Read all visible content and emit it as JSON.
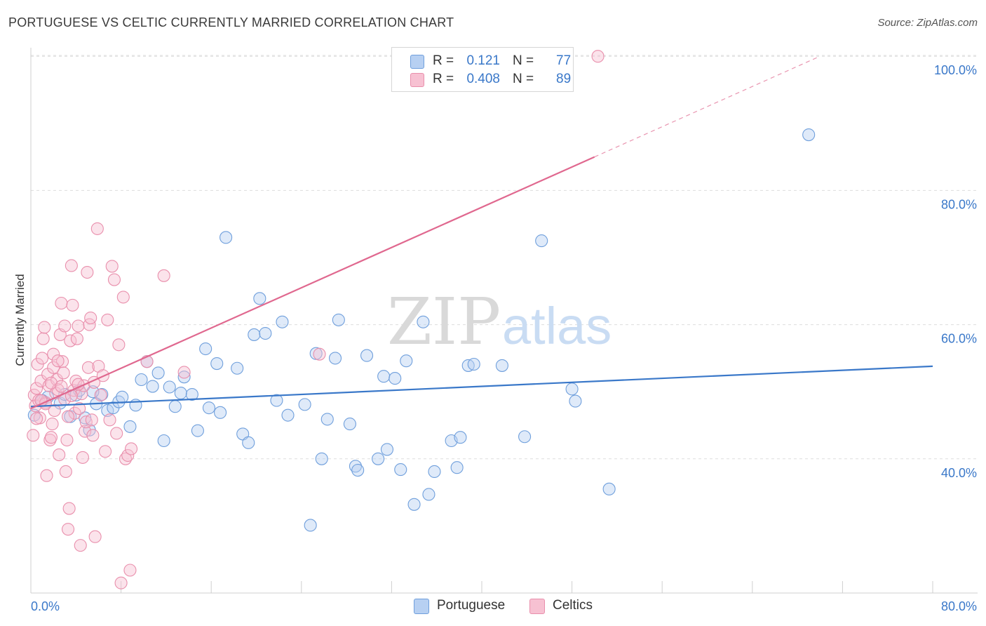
{
  "title": "PORTUGUESE VS CELTIC CURRENTLY MARRIED CORRELATION CHART",
  "source": "Source: ZipAtlas.com",
  "watermark": {
    "zip": "ZIP",
    "atlas": "atlas"
  },
  "legend": {
    "rows": [
      {
        "name": "Portuguese",
        "r_label": "R =",
        "r_value": "0.121",
        "n_label": "N =",
        "n_value": "77",
        "color": "#a9c8f0"
      },
      {
        "name": "Celtics",
        "r_label": "R =",
        "r_value": "0.408",
        "n_label": "N =",
        "n_value": "89",
        "color": "#f6b8cb"
      }
    ]
  },
  "colors": {
    "blue": "#3a78c9",
    "blue_fill": "#b7d0f2",
    "pink": "#e0688f",
    "pink_fill": "#f7c1d2",
    "grid": "#dddddd",
    "axis_text": "#3a78c9"
  },
  "chart_data": {
    "type": "scatter",
    "title": "PORTUGUESE VS CELTIC CURRENTLY MARRIED CORRELATION CHART",
    "xlabel": "",
    "ylabel": "Currently Married",
    "xlim": [
      0,
      80
    ],
    "ylim": [
      20,
      102
    ],
    "x_tick_labels": [
      "0.0%",
      "80.0%"
    ],
    "y_ticks": [
      40,
      60,
      80,
      100
    ],
    "y_tick_labels": [
      "40.0%",
      "60.0%",
      "80.0%",
      "100.0%"
    ],
    "series": [
      {
        "name": "Portuguese",
        "color": "#3a78c9",
        "trend": {
          "x": [
            0,
            80
          ],
          "y": [
            47.8,
            53.8
          ],
          "dashed_to": null
        },
        "points": [
          [
            0.3,
            46.5
          ],
          [
            1.5,
            49.2
          ],
          [
            2.6,
            48.3
          ],
          [
            3.5,
            46.3
          ],
          [
            4.0,
            49.5
          ],
          [
            4.3,
            50.2
          ],
          [
            4.8,
            46.1
          ],
          [
            5.2,
            44.3
          ],
          [
            5.8,
            48.2
          ],
          [
            6.3,
            49.6
          ],
          [
            6.8,
            47.2
          ],
          [
            7.3,
            47.6
          ],
          [
            7.8,
            48.5
          ],
          [
            8.1,
            49.2
          ],
          [
            8.8,
            44.8
          ],
          [
            9.3,
            48.0
          ],
          [
            9.8,
            51.8
          ],
          [
            10.3,
            54.5
          ],
          [
            10.8,
            50.8
          ],
          [
            11.3,
            52.8
          ],
          [
            11.8,
            42.7
          ],
          [
            12.3,
            50.7
          ],
          [
            12.8,
            47.8
          ],
          [
            13.3,
            49.8
          ],
          [
            13.6,
            52.2
          ],
          [
            14.3,
            49.6
          ],
          [
            14.8,
            44.2
          ],
          [
            15.5,
            56.4
          ],
          [
            15.8,
            47.6
          ],
          [
            16.5,
            54.2
          ],
          [
            16.8,
            46.9
          ],
          [
            17.3,
            73.0
          ],
          [
            18.3,
            53.5
          ],
          [
            18.8,
            43.7
          ],
          [
            19.3,
            42.4
          ],
          [
            19.8,
            58.5
          ],
          [
            20.3,
            63.9
          ],
          [
            20.8,
            58.7
          ],
          [
            21.8,
            48.7
          ],
          [
            22.3,
            60.4
          ],
          [
            22.8,
            46.5
          ],
          [
            24.3,
            48.1
          ],
          [
            24.8,
            30.1
          ],
          [
            25.3,
            55.7
          ],
          [
            25.8,
            40.0
          ],
          [
            26.3,
            45.9
          ],
          [
            27.0,
            55.0
          ],
          [
            27.3,
            60.7
          ],
          [
            28.3,
            45.2
          ],
          [
            28.8,
            38.9
          ],
          [
            29.0,
            38.3
          ],
          [
            29.8,
            55.4
          ],
          [
            30.8,
            40.0
          ],
          [
            31.3,
            52.3
          ],
          [
            31.6,
            41.4
          ],
          [
            32.3,
            52.0
          ],
          [
            32.8,
            38.4
          ],
          [
            33.3,
            54.6
          ],
          [
            34.0,
            33.2
          ],
          [
            35.3,
            34.7
          ],
          [
            34.8,
            60.4
          ],
          [
            35.8,
            38.1
          ],
          [
            37.3,
            42.7
          ],
          [
            37.8,
            38.7
          ],
          [
            38.1,
            43.2
          ],
          [
            38.8,
            53.9
          ],
          [
            39.3,
            54.1
          ],
          [
            41.8,
            53.9
          ],
          [
            43.8,
            43.3
          ],
          [
            45.3,
            72.5
          ],
          [
            48.0,
            50.4
          ],
          [
            48.3,
            48.6
          ],
          [
            51.3,
            35.5
          ],
          [
            69.0,
            88.3
          ],
          [
            1.0,
            48.7
          ],
          [
            5.5,
            50.0
          ],
          [
            3.0,
            49.6
          ]
        ]
      },
      {
        "name": "Celtics",
        "color": "#e0688f",
        "trend": {
          "x": [
            0,
            50
          ],
          "y": [
            47.5,
            85.0
          ],
          "dashed_to": [
            70,
            100
          ]
        },
        "points": [
          [
            0.2,
            43.5
          ],
          [
            0.3,
            49.5
          ],
          [
            0.4,
            47.9
          ],
          [
            0.5,
            50.5
          ],
          [
            0.6,
            54.1
          ],
          [
            0.7,
            48.7
          ],
          [
            0.8,
            46.1
          ],
          [
            0.9,
            51.6
          ],
          [
            1.0,
            55.0
          ],
          [
            1.1,
            57.9
          ],
          [
            1.2,
            59.6
          ],
          [
            1.3,
            48.4
          ],
          [
            1.4,
            37.5
          ],
          [
            1.5,
            52.6
          ],
          [
            1.6,
            50.9
          ],
          [
            1.7,
            42.8
          ],
          [
            1.8,
            43.2
          ],
          [
            1.9,
            45.2
          ],
          [
            2.0,
            55.6
          ],
          [
            2.1,
            47.2
          ],
          [
            2.2,
            49.8
          ],
          [
            2.3,
            51.8
          ],
          [
            2.4,
            50.3
          ],
          [
            2.5,
            40.6
          ],
          [
            2.6,
            58.5
          ],
          [
            2.7,
            63.2
          ],
          [
            2.8,
            54.5
          ],
          [
            2.9,
            52.8
          ],
          [
            3.0,
            59.8
          ],
          [
            3.1,
            38.1
          ],
          [
            3.2,
            42.8
          ],
          [
            3.3,
            29.5
          ],
          [
            3.4,
            32.6
          ],
          [
            3.5,
            57.6
          ],
          [
            3.6,
            68.8
          ],
          [
            3.7,
            62.9
          ],
          [
            3.8,
            50.2
          ],
          [
            3.9,
            46.8
          ],
          [
            4.0,
            51.6
          ],
          [
            4.1,
            57.9
          ],
          [
            4.2,
            59.8
          ],
          [
            4.3,
            47.5
          ],
          [
            4.4,
            27.1
          ],
          [
            4.5,
            49.7
          ],
          [
            4.6,
            40.2
          ],
          [
            4.7,
            50.9
          ],
          [
            4.8,
            44.1
          ],
          [
            4.9,
            45.5
          ],
          [
            5.0,
            67.8
          ],
          [
            5.1,
            53.6
          ],
          [
            5.2,
            60.0
          ],
          [
            5.3,
            61.0
          ],
          [
            5.4,
            45.8
          ],
          [
            5.5,
            43.5
          ],
          [
            5.6,
            51.4
          ],
          [
            5.7,
            28.4
          ],
          [
            5.9,
            74.3
          ],
          [
            6.0,
            53.8
          ],
          [
            6.2,
            49.5
          ],
          [
            6.4,
            52.4
          ],
          [
            6.6,
            41.1
          ],
          [
            6.8,
            60.7
          ],
          [
            7.0,
            45.8
          ],
          [
            7.2,
            68.7
          ],
          [
            7.4,
            66.7
          ],
          [
            7.6,
            43.8
          ],
          [
            7.8,
            57.0
          ],
          [
            8.0,
            21.5
          ],
          [
            8.2,
            64.1
          ],
          [
            8.4,
            40.0
          ],
          [
            8.6,
            40.5
          ],
          [
            8.8,
            23.4
          ],
          [
            8.9,
            41.5
          ],
          [
            10.3,
            54.5
          ],
          [
            11.8,
            67.3
          ],
          [
            13.6,
            52.9
          ],
          [
            25.6,
            55.6
          ],
          [
            50.3,
            100.0
          ],
          [
            0.5,
            46.0
          ],
          [
            1.3,
            48.2
          ],
          [
            2.0,
            53.6
          ],
          [
            2.4,
            54.6
          ],
          [
            3.0,
            48.9
          ],
          [
            3.6,
            49.4
          ],
          [
            4.2,
            51.1
          ],
          [
            1.8,
            51.3
          ],
          [
            0.9,
            48.7
          ],
          [
            2.7,
            50.8
          ],
          [
            3.3,
            46.3
          ]
        ]
      }
    ]
  }
}
